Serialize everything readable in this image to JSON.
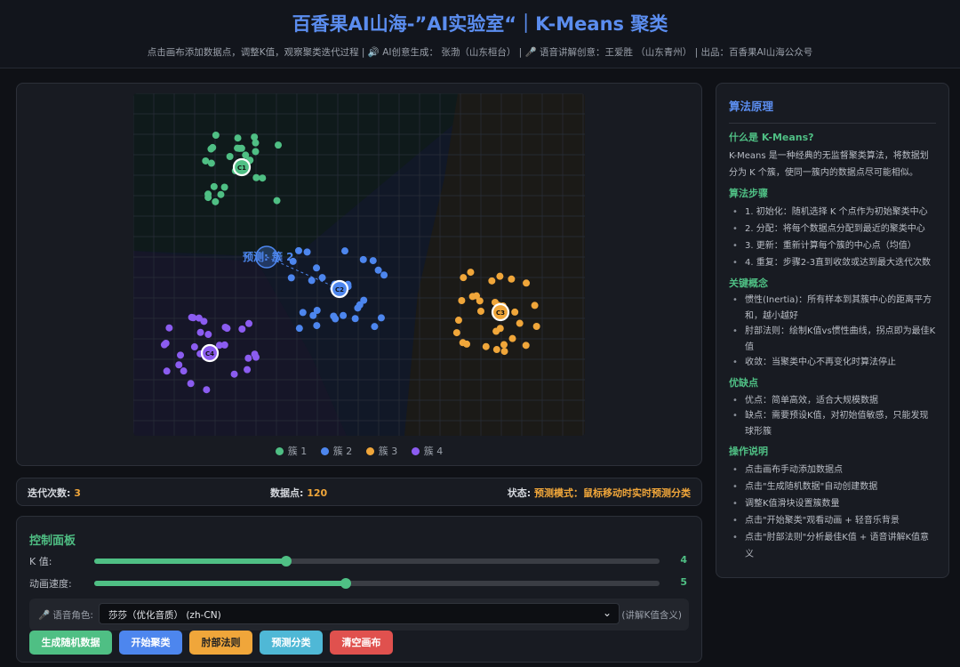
{
  "header": {
    "title": "百香果AI山海-”AI实验室“｜K-Means 聚类",
    "subtitle": "点击画布添加数据点，调整K值，观察聚类迭代过程 | 🔊 AI创意生成： 张渤（山东桓台） | 🎤 语音讲解创意：王爱胜 （山东青州） | 出品：百香果AI山海公众号"
  },
  "canvas": {
    "centroids": [
      {
        "label": "C1",
        "color": "#4fbf84"
      },
      {
        "label": "C2",
        "color": "#4d86ee"
      },
      {
        "label": "C3",
        "color": "#f0a63a"
      },
      {
        "label": "C4",
        "color": "#8b5cf0"
      }
    ],
    "prediction_label": "预测: 簇 2",
    "legend": [
      "簇 1",
      "簇 2",
      "簇 3",
      "簇 4"
    ]
  },
  "stats": {
    "iter_label": "迭代次数:",
    "iter": "3",
    "points_label": "数据点:",
    "points": "120",
    "status_label": "状态:",
    "status": "预测模式：鼠标移动时实时预测分类"
  },
  "controls": {
    "title": "控制面板",
    "k_label": "K 值:",
    "k_value": "4",
    "k_fraction": 0.34,
    "speed_label": "动画速度:",
    "speed_value": "5",
    "speed_fraction": 0.445,
    "voice_label": "🎤 语音角色:",
    "voice_selected": "莎莎（优化音质） (zh-CN)",
    "voice_hint": "(讲解K值含义)",
    "buttons": [
      {
        "label": "生成随机数据",
        "color": "#4fbf84"
      },
      {
        "label": "开始聚类",
        "color": "#4d86ee"
      },
      {
        "label": "肘部法则",
        "color": "#f0a63a"
      },
      {
        "label": "预测分类",
        "color": "#4fb8d6"
      },
      {
        "label": "清空画布",
        "color": "#e0514e"
      }
    ]
  },
  "side": {
    "title": "算法原理",
    "what_title": "什么是 K-Means?",
    "what_text": "K-Means 是一种经典的无监督聚类算法，将数据划分为 K 个簇，使同一簇内的数据点尽可能相似。",
    "steps_title": "算法步骤",
    "steps": [
      "1. 初始化：随机选择 K 个点作为初始聚类中心",
      "2. 分配：将每个数据点分配到最近的聚类中心",
      "3. 更新：重新计算每个簇的中心点（均值）",
      "4. 重复：步骤2-3直到收敛或达到最大迭代次数"
    ],
    "concepts_title": "关键概念",
    "concepts": [
      "惯性(Inertia)：所有样本到其簇中心的距离平方和，越小越好",
      "肘部法则：绘制K值vs惯性曲线，拐点即为最佳K值",
      "收敛：当聚类中心不再变化时算法停止"
    ],
    "pros_title": "优缺点",
    "pros": [
      "优点：简单高效，适合大规模数据",
      "缺点：需要预设K值，对初始值敏感，只能发现球形簇"
    ],
    "ops_title": "操作说明",
    "ops": [
      "点击画布手动添加数据点",
      "点击\"生成随机数据\"自动创建数据",
      "调整K值滑块设置簇数量",
      "点击\"开始聚类\"观看动画 + 轻音乐背景",
      "点击\"肘部法则\"分析最佳K值 + 语音讲解K值意义"
    ]
  }
}
